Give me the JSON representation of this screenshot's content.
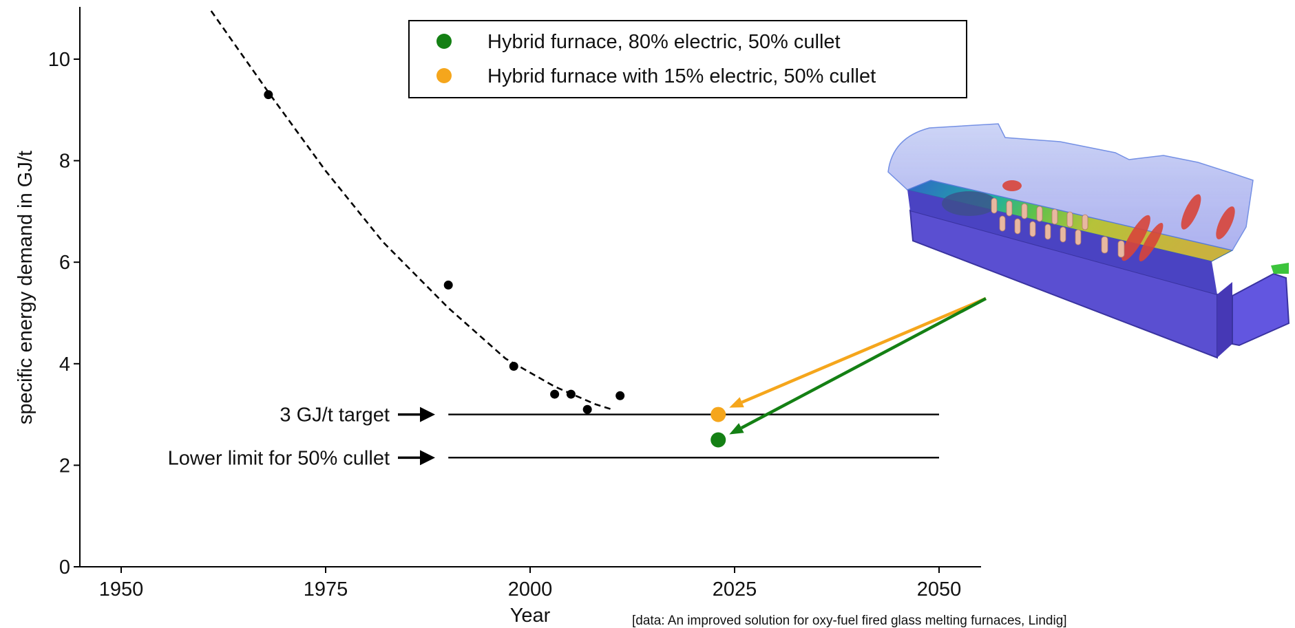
{
  "chart_data": {
    "type": "scatter",
    "xlabel": "Year",
    "ylabel": "specific energy demand in GJ/t",
    "xlim": [
      1945,
      2055
    ],
    "ylim": [
      0,
      11
    ],
    "x_ticks": [
      1950,
      1975,
      2000,
      2025,
      2050
    ],
    "y_ticks": [
      0,
      2,
      4,
      6,
      8,
      10
    ],
    "x_tick_labels": [
      "1950",
      "1975",
      "2000",
      "2025",
      "2050"
    ],
    "y_tick_labels": [
      "0",
      "2",
      "4",
      "6",
      "8",
      "10"
    ],
    "grid": false,
    "legend_position": "top-center",
    "historical": {
      "color": "#000000",
      "x": [
        1968,
        1990,
        1998,
        2003,
        2005,
        2007,
        2011
      ],
      "y": [
        9.3,
        5.55,
        3.95,
        3.4,
        3.4,
        3.1,
        3.37
      ]
    },
    "trend_curve": {
      "style": "dashed",
      "color": "#000000",
      "x": [
        1961,
        1968,
        1975,
        1982,
        1990,
        1997,
        2003,
        2008,
        2010
      ],
      "y": [
        10.95,
        9.35,
        7.8,
        6.4,
        5.1,
        4.1,
        3.55,
        3.2,
        3.1
      ]
    },
    "series": [
      {
        "name": "Hybrid furnace, 80% electric, 50% cullet",
        "color": "#148014",
        "x": [
          2023
        ],
        "y": [
          2.5
        ]
      },
      {
        "name": "Hybrid furnace with 15% electric, 50% cullet",
        "color": "#f5a61c",
        "x": [
          2023
        ],
        "y": [
          3.0
        ]
      }
    ],
    "reference_lines": [
      {
        "label": "3 GJ/t target",
        "y": 3.0,
        "x_start": 1990,
        "x_end": 2050
      },
      {
        "label": "Lower limit for 50% cullet",
        "y": 2.15,
        "x_start": 1990,
        "x_end": 2050
      }
    ],
    "annotation_arrow_colors": [
      "#f5a61c",
      "#148014"
    ]
  },
  "source_note": "[data: An improved solution for oxy-fuel fired glass melting furnaces, Lindig]"
}
